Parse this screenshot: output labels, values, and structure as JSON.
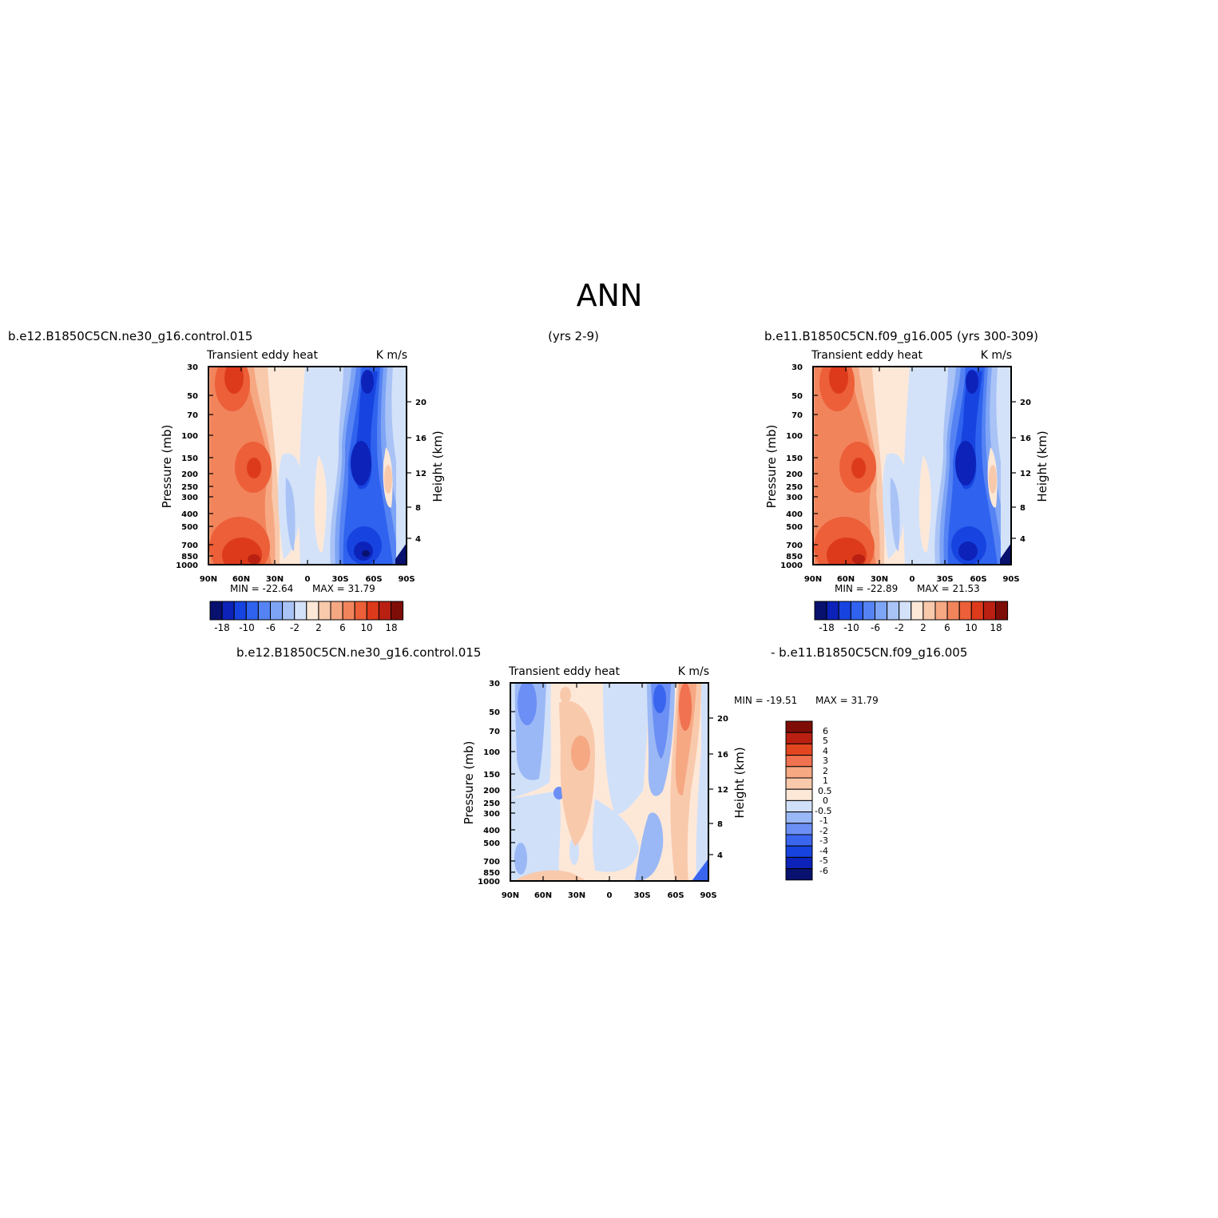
{
  "figure": {
    "title": "ANN",
    "top_left_label": "b.e12.B1850C5CN.ne30_g16.control.015",
    "top_center_label": "(yrs 2-9)",
    "top_right_label": "b.e11.B1850C5CN.f09_g16.005 (yrs 300-309)",
    "bottom_left_label": "b.e12.B1850C5CN.ne30_g16.control.015",
    "bottom_right_label": "- b.e11.B1850C5CN.f09_g16.005"
  },
  "colors": {
    "main_scale": [
      "#08116e",
      "#0c22b9",
      "#1744e0",
      "#2f62ee",
      "#5583f3",
      "#7ea4f5",
      "#a9c3f6",
      "#d3e2f9",
      "#fde8d8",
      "#f9c9ac",
      "#f6a883",
      "#f2845c",
      "#ec5f38",
      "#dd3a1c",
      "#b92012",
      "#7f0d07"
    ],
    "diff_scale": [
      "#08116e",
      "#0c22b9",
      "#1744e0",
      "#3a65ef",
      "#6b8ff4",
      "#9bb8f6",
      "#d0e0f9",
      "#fde8d8",
      "#f9c9ac",
      "#f6a883",
      "#f07250",
      "#e2461f",
      "#b92012",
      "#7f0d07"
    ]
  },
  "chart_data": [
    {
      "type": "heatmap",
      "panel": "top-left",
      "title_left": "Transient eddy heat",
      "title_right": "K m/s",
      "xlabel": "",
      "ylabel": "Pressure (mb)",
      "ylabel_right": "Height (km)",
      "x_ticks": [
        "90N",
        "60N",
        "30N",
        "0",
        "30S",
        "60S",
        "90S"
      ],
      "y_ticks": [
        "30",
        "50",
        "70",
        "100",
        "150",
        "200",
        "250",
        "300",
        "400",
        "500",
        "700",
        "850",
        "1000"
      ],
      "y_ticks_right": [
        "20",
        "16",
        "12",
        "8",
        "4"
      ],
      "min_label": "MIN = -22.64",
      "max_label": "MAX = 31.79",
      "colorbar_labels": [
        "-18",
        "-10",
        "-6",
        "-2",
        "2",
        "6",
        "10",
        "18"
      ],
      "colorbar_levels": [
        -18,
        -14,
        -10,
        -8,
        -6,
        -4,
        -2,
        0,
        2,
        4,
        6,
        8,
        10,
        14,
        18
      ],
      "min": -22.64,
      "max": 31.79
    },
    {
      "type": "heatmap",
      "panel": "top-right",
      "title_left": "Transient eddy heat",
      "title_right": "K m/s",
      "xlabel": "",
      "ylabel": "Pressure (mb)",
      "ylabel_right": "Height (km)",
      "x_ticks": [
        "90N",
        "60N",
        "30N",
        "0",
        "30S",
        "60S",
        "90S"
      ],
      "y_ticks": [
        "30",
        "50",
        "70",
        "100",
        "150",
        "200",
        "250",
        "300",
        "400",
        "500",
        "700",
        "850",
        "1000"
      ],
      "y_ticks_right": [
        "20",
        "16",
        "12",
        "8",
        "4"
      ],
      "min_label": "MIN = -22.89",
      "max_label": "MAX = 21.53",
      "colorbar_labels": [
        "-18",
        "-10",
        "-6",
        "-2",
        "2",
        "6",
        "10",
        "18"
      ],
      "colorbar_levels": [
        -18,
        -14,
        -10,
        -8,
        -6,
        -4,
        -2,
        0,
        2,
        4,
        6,
        8,
        10,
        14,
        18
      ],
      "min": -22.89,
      "max": 21.53
    },
    {
      "type": "heatmap",
      "panel": "bottom-difference",
      "title_left": "Transient eddy heat",
      "title_right": "K m/s",
      "xlabel": "",
      "ylabel": "Pressure (mb)",
      "ylabel_right": "Height (km)",
      "x_ticks": [
        "90N",
        "60N",
        "30N",
        "0",
        "30S",
        "60S",
        "90S"
      ],
      "y_ticks": [
        "30",
        "50",
        "70",
        "100",
        "150",
        "200",
        "250",
        "300",
        "400",
        "500",
        "700",
        "850",
        "1000"
      ],
      "y_ticks_right": [
        "20",
        "16",
        "12",
        "8",
        "4"
      ],
      "min_label": "MIN = -19.51",
      "max_label": "MAX = 31.79",
      "colorbar_labels": [
        "6",
        "5",
        "4",
        "3",
        "2",
        "1",
        "0.5",
        "0",
        "-0.5",
        "-1",
        "-2",
        "-3",
        "-4",
        "-5",
        "-6"
      ],
      "min": -19.51,
      "max": 31.79
    }
  ]
}
